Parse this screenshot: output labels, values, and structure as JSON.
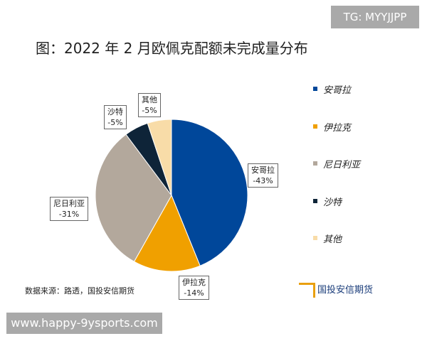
{
  "watermark_top": "TG: MYYJJPP",
  "watermark_bottom": "www.happy-9ysports.com",
  "source": "数据来源：路透，国投安信期货",
  "logo_text": "国投安信期货",
  "chart_data": {
    "type": "pie",
    "title": "图：2022 年 2 月欧佩克配额未完成量分布",
    "categories": [
      "安哥拉",
      "伊拉克",
      "尼日利亚",
      "沙特",
      "其他"
    ],
    "values": [
      43,
      14,
      31,
      5,
      5
    ],
    "labels": [
      "-43%",
      "-14%",
      "-31%",
      "-5%",
      "-5%"
    ],
    "colors": [
      "#00479a",
      "#f0a000",
      "#b3a89c",
      "#0e2438",
      "#f8dca8"
    ],
    "start": "top, clockwise",
    "legend": "right"
  }
}
